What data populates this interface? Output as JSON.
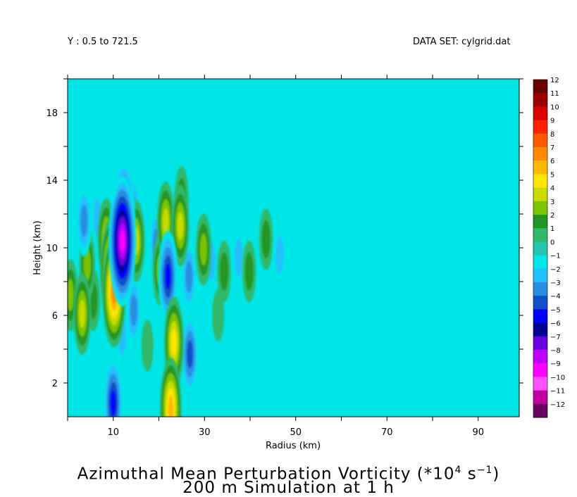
{
  "header": {
    "range_label": "Y : 0.5 to 721.5",
    "dataset_label": "DATA SET: cylgrid.dat"
  },
  "title": {
    "line1_prefix": "Azimuthal Mean Perturbation Vorticity (*10",
    "line1_exp": "4",
    "line1_mid": " s",
    "line1_exp2": "−1",
    "line1_suffix": ")",
    "line2": "200 m Simulation at 1 h"
  },
  "chart_data": {
    "type": "heatmap",
    "xlabel": "Radius (km)",
    "ylabel": "Height (km)",
    "xlim": [
      0,
      99
    ],
    "ylim": [
      0,
      20
    ],
    "x_ticks": [
      10,
      30,
      50,
      70,
      90
    ],
    "y_ticks": [
      2,
      6,
      10,
      14,
      18
    ],
    "grid": false,
    "colorbar": {
      "levels": [
        12,
        11,
        10,
        9,
        8,
        7,
        6,
        5,
        4,
        3,
        2,
        1,
        0,
        -1,
        -2,
        -3,
        -4,
        -5,
        -6,
        -7,
        -8,
        -9,
        -10,
        -11,
        -12
      ],
      "labels": [
        "12",
        "11",
        "10",
        "9",
        "8",
        "7",
        "6",
        "5",
        "4",
        "3",
        "2",
        "1",
        "0",
        "−1",
        "−2",
        "−3",
        "−4",
        "−5",
        "−6",
        "−7",
        "−8",
        "−9",
        "−10",
        "−11",
        "−12"
      ],
      "colors": [
        "#6a0000",
        "#9a0000",
        "#d80000",
        "#ff2000",
        "#ff5a00",
        "#ff8a00",
        "#ffb800",
        "#ffe600",
        "#c8dc00",
        "#7cc400",
        "#229522",
        "#31b86a",
        "#22c4b0",
        "#00e6e6",
        "#20c0ff",
        "#2a8ee0",
        "#1050c8",
        "#0000ff",
        "#000090",
        "#6a00e0",
        "#c000ff",
        "#ff00ff",
        "#ff50ff",
        "#c000a0",
        "#6a0060"
      ]
    },
    "features": [
      {
        "x": 0.6,
        "y": 7.2,
        "value": 3
      },
      {
        "x": 3.2,
        "y": 6.1,
        "value": 4
      },
      {
        "x": 4.3,
        "y": 9.0,
        "value": 3
      },
      {
        "x": 5.6,
        "y": 6.9,
        "value": 2
      },
      {
        "x": 3.6,
        "y": 11.6,
        "value": -3
      },
      {
        "x": 6.5,
        "y": 11.8,
        "value": -2
      },
      {
        "x": 8.5,
        "y": 10.5,
        "value": 4
      },
      {
        "x": 9.5,
        "y": 8.7,
        "value": 6
      },
      {
        "x": 10.2,
        "y": 7.4,
        "value": 7
      },
      {
        "x": 12.0,
        "y": 10.4,
        "value": -9
      },
      {
        "x": 12.3,
        "y": 12.2,
        "value": -6
      },
      {
        "x": 15.0,
        "y": 10.4,
        "value": 4
      },
      {
        "x": 14.2,
        "y": 12.3,
        "value": -3
      },
      {
        "x": 14.5,
        "y": 6.3,
        "value": -3
      },
      {
        "x": 19.5,
        "y": 10.2,
        "value": -3
      },
      {
        "x": 21.5,
        "y": 11.5,
        "value": 4
      },
      {
        "x": 20.3,
        "y": 8.7,
        "value": 3
      },
      {
        "x": 22.0,
        "y": 8.3,
        "value": -5
      },
      {
        "x": 24.7,
        "y": 11.3,
        "value": 4
      },
      {
        "x": 25.0,
        "y": 13.0,
        "value": 2
      },
      {
        "x": 23.3,
        "y": 4.4,
        "value": 5
      },
      {
        "x": 22.6,
        "y": 0.5,
        "value": 6
      },
      {
        "x": 26.8,
        "y": 3.7,
        "value": -4
      },
      {
        "x": 26.6,
        "y": 8.3,
        "value": -3
      },
      {
        "x": 29.8,
        "y": 9.9,
        "value": 3
      },
      {
        "x": 31.5,
        "y": 9.2,
        "value": -2
      },
      {
        "x": 34.3,
        "y": 8.6,
        "value": 2
      },
      {
        "x": 37.5,
        "y": 9.4,
        "value": -2
      },
      {
        "x": 39.8,
        "y": 8.6,
        "value": 2
      },
      {
        "x": 43.5,
        "y": 10.5,
        "value": 2
      },
      {
        "x": 46.5,
        "y": 9.6,
        "value": -2
      },
      {
        "x": 10.0,
        "y": 0.8,
        "value": -5
      },
      {
        "x": 12.0,
        "y": 4.8,
        "value": -2
      },
      {
        "x": 17.5,
        "y": 4.2,
        "value": 1
      },
      {
        "x": 33.0,
        "y": 6.0,
        "value": 1
      }
    ]
  }
}
